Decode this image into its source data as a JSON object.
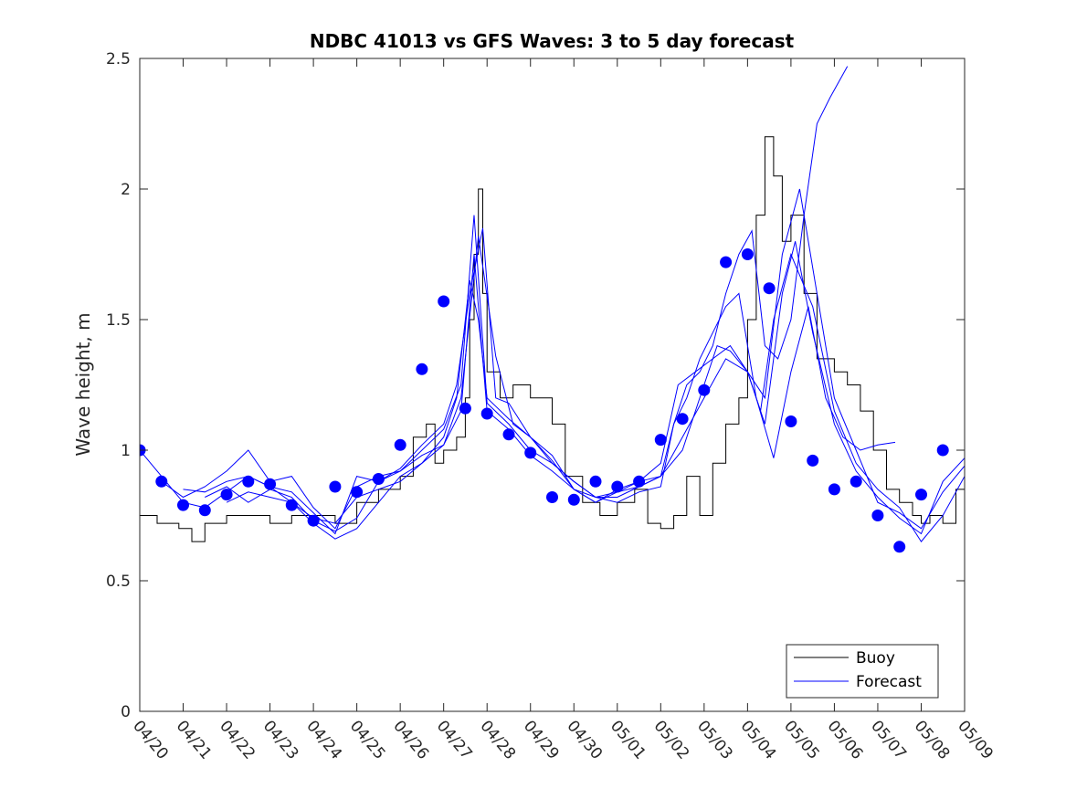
{
  "chart_data": {
    "type": "line",
    "title": "NDBC 41013 vs GFS Waves: 3 to 5 day forecast",
    "xlabel": "",
    "ylabel": "Wave height, m",
    "ylim": [
      0,
      2.5
    ],
    "yticks": [
      "0",
      "0.5",
      "1",
      "1.5",
      "2",
      "2.5"
    ],
    "xlim": [
      0,
      19
    ],
    "xticks": [
      "04/20",
      "04/21",
      "04/22",
      "04/23",
      "04/24",
      "04/25",
      "04/26",
      "04/27",
      "04/28",
      "04/29",
      "04/30",
      "05/01",
      "05/02",
      "05/03",
      "05/04",
      "05/05",
      "05/06",
      "05/07",
      "05/08",
      "05/09"
    ],
    "grid": false,
    "legend": {
      "location": "bottom-right",
      "entries": [
        "Buoy",
        "Forecast"
      ]
    },
    "colors": {
      "buoy": "#000000",
      "forecast": "#0000ff",
      "markers": "#0000ff",
      "axes": "#262626"
    },
    "series": [
      {
        "name": "Buoy",
        "style": "step-line",
        "x": [
          0,
          0.4,
          0.9,
          1.2,
          1.5,
          2.0,
          2.5,
          3.0,
          3.5,
          4.0,
          4.5,
          5.0,
          5.5,
          6.0,
          6.3,
          6.6,
          6.8,
          7.0,
          7.3,
          7.5,
          7.6,
          7.7,
          7.8,
          7.9,
          8.0,
          8.3,
          8.6,
          9.0,
          9.5,
          9.8,
          10.2,
          10.6,
          11.0,
          11.4,
          11.7,
          12.0,
          12.3,
          12.6,
          12.9,
          13.2,
          13.5,
          13.8,
          14.0,
          14.2,
          14.4,
          14.6,
          14.8,
          15.0,
          15.3,
          15.6,
          16.0,
          16.3,
          16.6,
          16.9,
          17.2,
          17.5,
          17.8,
          18.0,
          18.2,
          18.5,
          18.8,
          19.0
        ],
        "y": [
          0.75,
          0.72,
          0.7,
          0.65,
          0.72,
          0.75,
          0.75,
          0.72,
          0.75,
          0.75,
          0.72,
          0.8,
          0.85,
          0.9,
          1.05,
          1.1,
          0.95,
          1.0,
          1.05,
          1.2,
          1.5,
          1.75,
          2.0,
          1.6,
          1.3,
          1.2,
          1.25,
          1.2,
          1.1,
          0.9,
          0.8,
          0.75,
          0.8,
          0.85,
          0.72,
          0.7,
          0.75,
          0.9,
          0.75,
          0.95,
          1.1,
          1.2,
          1.5,
          1.9,
          2.2,
          2.05,
          1.8,
          1.9,
          1.6,
          1.35,
          1.3,
          1.25,
          1.15,
          1.0,
          0.85,
          0.8,
          0.75,
          0.72,
          0.75,
          0.72,
          0.85,
          0.95
        ]
      },
      {
        "name": "Forecast",
        "style": "line",
        "x": [
          0,
          0.5,
          1.0,
          1.5,
          2.0,
          2.5,
          3.0,
          3.5,
          4.0,
          4.5,
          5.0,
          5.5,
          6.0,
          6.5,
          7.0,
          7.3,
          7.6,
          7.8,
          8.0,
          8.5,
          9.0,
          9.5,
          10.0,
          10.5,
          11.0,
          11.5,
          12.0,
          12.5,
          13.0,
          13.5,
          14.0,
          14.3,
          14.6,
          15.0,
          15.5,
          16.0,
          16.5,
          17.0,
          17.5,
          18.0,
          18.5,
          19.0
        ],
        "y": [
          1.0,
          0.9,
          0.8,
          0.78,
          0.84,
          0.9,
          0.86,
          0.8,
          0.74,
          0.72,
          0.82,
          0.85,
          0.88,
          0.95,
          1.05,
          1.2,
          1.65,
          1.5,
          1.2,
          1.12,
          1.05,
          0.98,
          0.85,
          0.8,
          0.85,
          0.88,
          0.9,
          1.05,
          1.2,
          1.35,
          1.3,
          1.15,
          1.5,
          1.75,
          1.55,
          1.15,
          0.95,
          0.85,
          0.78,
          0.65,
          0.75,
          0.9
        ]
      },
      {
        "name": "Forecast",
        "style": "line",
        "x": [
          0.5,
          1.0,
          1.5,
          2.0,
          2.5,
          3.0,
          3.5,
          4.0,
          4.5,
          5.0,
          5.5,
          6.0,
          6.5,
          7.0,
          7.4,
          7.7,
          8.0,
          8.5,
          9.0,
          9.5,
          10.0,
          10.5,
          11.0,
          11.5,
          12.0,
          12.5,
          13.0,
          13.3,
          13.6,
          14.0,
          14.4,
          14.8,
          15.1,
          15.5,
          16.0,
          16.5,
          17.0,
          17.5,
          18.0,
          18.5,
          19.0
        ],
        "y": [
          0.88,
          0.82,
          0.86,
          0.92,
          1.0,
          0.88,
          0.9,
          0.78,
          0.7,
          0.86,
          0.9,
          0.92,
          1.0,
          1.08,
          1.25,
          1.9,
          1.18,
          1.1,
          1.0,
          0.95,
          0.88,
          0.82,
          0.82,
          0.86,
          0.9,
          1.0,
          1.25,
          1.4,
          1.38,
          1.3,
          1.1,
          1.6,
          1.8,
          1.45,
          1.1,
          0.92,
          0.82,
          0.74,
          0.68,
          0.88,
          0.97
        ]
      },
      {
        "name": "Forecast",
        "style": "line",
        "x": [
          1.0,
          1.5,
          2.0,
          2.5,
          3.0,
          3.5,
          4.0,
          4.5,
          5.0,
          5.5,
          6.0,
          6.5,
          7.0,
          7.4,
          7.7,
          8.0,
          8.5,
          9.0,
          9.5,
          10.0,
          10.5,
          11.0,
          11.5,
          12.0,
          12.4,
          12.8,
          13.2,
          13.6,
          14.0,
          14.4,
          14.8,
          15.2,
          15.6,
          16.0,
          16.5,
          17.0,
          17.5,
          18.0,
          18.5,
          19.0
        ],
        "y": [
          0.85,
          0.84,
          0.88,
          0.9,
          0.86,
          0.84,
          0.76,
          0.68,
          0.9,
          0.88,
          0.92,
          0.98,
          1.02,
          1.15,
          1.75,
          1.15,
          1.08,
          0.98,
          0.92,
          0.85,
          0.8,
          0.84,
          0.88,
          0.95,
          1.25,
          1.3,
          1.35,
          1.4,
          1.3,
          1.2,
          1.75,
          2.0,
          1.6,
          1.2,
          1.0,
          0.8,
          0.76,
          0.7,
          0.84,
          0.94
        ]
      },
      {
        "name": "Forecast",
        "style": "line",
        "x": [
          1.5,
          2.0,
          2.5,
          3.0,
          3.5,
          4.0,
          4.5,
          5.0,
          5.5,
          6.0,
          6.5,
          7.0,
          7.3,
          7.6,
          7.9,
          8.2,
          8.5,
          9.0,
          9.5,
          10.0,
          10.5,
          11.0,
          11.5,
          12.0,
          12.3,
          12.6,
          12.9,
          13.2,
          13.5,
          13.8,
          14.1,
          14.4,
          14.7,
          15.0,
          15.3,
          15.6,
          15.9,
          16.3
        ],
        "y": [
          0.82,
          0.86,
          0.8,
          0.85,
          0.82,
          0.73,
          0.69,
          0.74,
          0.88,
          0.93,
          1.02,
          1.1,
          1.25,
          1.6,
          1.85,
          1.2,
          1.18,
          1.05,
          0.96,
          0.85,
          0.82,
          0.8,
          0.84,
          0.86,
          1.1,
          1.25,
          1.3,
          1.4,
          1.6,
          1.75,
          1.84,
          1.4,
          1.35,
          1.5,
          1.9,
          2.25,
          2.35,
          2.47
        ]
      },
      {
        "name": "Forecast",
        "style": "line",
        "x": [
          2.0,
          2.5,
          3.0,
          3.5,
          4.0,
          4.5,
          5.0,
          5.5,
          6.0,
          6.5,
          7.0,
          7.4,
          7.8,
          8.2,
          8.6,
          9.0,
          9.5,
          10.0,
          10.5,
          11.0,
          11.5,
          12.0,
          12.3,
          12.6,
          12.9,
          13.2,
          13.5,
          13.8,
          14.2,
          14.6,
          15.0,
          15.4,
          15.8,
          16.2,
          16.6,
          17.0,
          17.4
        ],
        "y": [
          0.8,
          0.84,
          0.82,
          0.8,
          0.72,
          0.66,
          0.7,
          0.8,
          0.9,
          0.95,
          1.02,
          1.2,
          1.82,
          1.36,
          1.1,
          1.05,
          0.95,
          0.88,
          0.82,
          0.84,
          0.86,
          0.9,
          1.1,
          1.2,
          1.35,
          1.45,
          1.55,
          1.6,
          1.2,
          0.97,
          1.3,
          1.55,
          1.2,
          1.05,
          1.0,
          1.02,
          1.03
        ]
      }
    ],
    "markers": {
      "name": "Buoy",
      "x": [
        0,
        0.5,
        1.0,
        1.5,
        2.0,
        2.5,
        3.0,
        3.5,
        4.0,
        4.5,
        5.0,
        5.5,
        6.0,
        6.5,
        7.0,
        7.5,
        8.0,
        8.5,
        9.0,
        9.5,
        10.0,
        10.5,
        11.0,
        11.5,
        12.0,
        12.5,
        13.0,
        13.5,
        14.0,
        14.5,
        15.0,
        15.5,
        16.0,
        16.5,
        17.0,
        17.5,
        18.0,
        18.5
      ],
      "y": [
        1.0,
        0.88,
        0.79,
        0.77,
        0.83,
        0.88,
        0.87,
        0.79,
        0.73,
        0.86,
        0.84,
        0.89,
        1.02,
        1.31,
        1.57,
        1.16,
        1.14,
        1.06,
        0.99,
        0.82,
        0.81,
        0.88,
        0.86,
        0.88,
        1.04,
        1.12,
        1.23,
        1.72,
        1.75,
        1.62,
        1.11,
        0.96,
        0.85,
        0.88,
        0.75,
        0.63,
        0.83,
        1.0
      ]
    }
  }
}
